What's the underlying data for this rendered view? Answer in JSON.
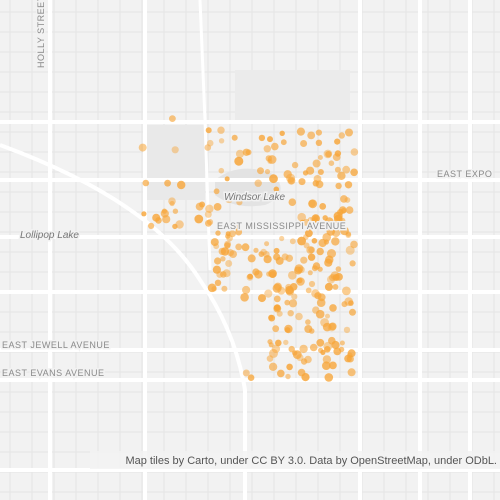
{
  "map": {
    "labels": {
      "holly": "HOLLY STREET",
      "expo": "EAST EXPO",
      "windsor": "Windsor Lake",
      "lollipop": "Lollipop Lake",
      "mississippi": "EAST MISSISSIPPI AVENUE",
      "jewell": "EAST JEWELL AVENUE",
      "evans": "EAST EVANS AVENUE"
    },
    "attribution": "Map tiles by Carto, under CC BY 3.0. Data by OpenStreetMap, under ODbL."
  }
}
